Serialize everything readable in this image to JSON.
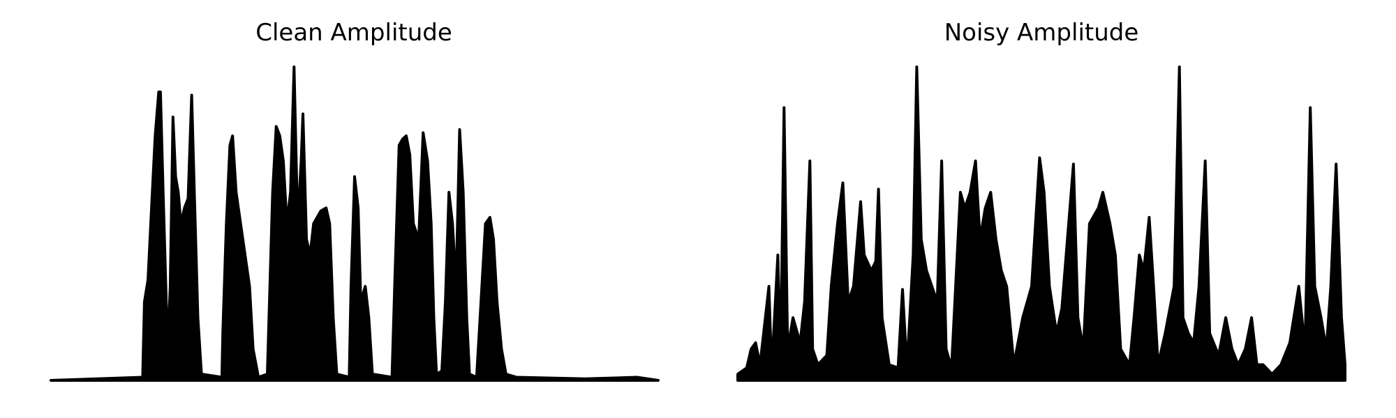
{
  "chart_data": [
    {
      "type": "line",
      "title": "Clean Amplitude",
      "color": "#000000",
      "xlim": [
        0,
        682
      ],
      "ylim": [
        0,
        1
      ],
      "x": [
        0,
        103,
        105,
        109,
        113,
        117,
        121,
        123,
        126,
        129,
        131,
        134,
        137,
        140,
        143,
        146,
        150,
        154,
        158,
        161,
        165,
        169,
        192,
        193,
        197,
        201,
        204,
        208,
        213,
        218,
        223,
        227,
        233,
        243,
        249,
        253,
        257,
        261,
        265,
        269,
        273,
        277,
        281,
        283,
        287,
        291,
        295,
        299,
        303,
        309,
        313,
        317,
        321,
        335,
        337,
        341,
        345,
        348,
        353,
        357,
        361,
        383,
        386,
        391,
        395,
        399,
        403,
        407,
        413,
        418,
        423,
        427,
        430,
        433,
        439,
        443,
        447,
        451,
        455,
        459,
        463,
        467,
        470,
        478,
        483,
        488,
        493,
        497,
        501,
        506,
        511,
        523,
        600,
        658,
        682
      ],
      "values": [
        0,
        0.01,
        0.25,
        0.32,
        0.55,
        0.78,
        0.92,
        0.92,
        0.6,
        0.3,
        0.1,
        0.3,
        0.84,
        0.65,
        0.6,
        0.5,
        0.55,
        0.58,
        0.91,
        0.6,
        0.2,
        0.02,
        0.01,
        0.15,
        0.5,
        0.75,
        0.78,
        0.6,
        0.5,
        0.4,
        0.3,
        0.1,
        0.01,
        0.02,
        0.6,
        0.81,
        0.78,
        0.7,
        0.5,
        0.6,
        1.0,
        0.5,
        0.7,
        0.85,
        0.45,
        0.4,
        0.5,
        0.52,
        0.54,
        0.55,
        0.5,
        0.2,
        0.02,
        0.01,
        0.3,
        0.65,
        0.55,
        0.25,
        0.3,
        0.2,
        0.02,
        0.01,
        0.3,
        0.75,
        0.77,
        0.78,
        0.72,
        0.5,
        0.45,
        0.79,
        0.7,
        0.5,
        0.2,
        0.02,
        0.03,
        0.25,
        0.6,
        0.5,
        0.3,
        0.8,
        0.6,
        0.2,
        0.02,
        0.01,
        0.25,
        0.5,
        0.52,
        0.45,
        0.25,
        0.1,
        0.02,
        0.01,
        0.005,
        0.01,
        0
      ]
    },
    {
      "type": "line",
      "title": "Noisy Amplitude",
      "color": "#000000",
      "xlim": [
        0,
        682
      ],
      "ylim": [
        0,
        1
      ],
      "x": [
        0,
        10,
        15,
        20,
        25,
        35,
        38,
        45,
        48,
        52,
        56,
        62,
        70,
        75,
        81,
        84,
        90,
        100,
        105,
        112,
        118,
        124,
        130,
        138,
        142,
        150,
        155,
        158,
        162,
        170,
        180,
        185,
        190,
        197,
        201,
        206,
        212,
        218,
        224,
        229,
        234,
        240,
        250,
        255,
        261,
        267,
        272,
        278,
        284,
        290,
        296,
        302,
        310,
        320,
        330,
        339,
        344,
        350,
        358,
        364,
        377,
        382,
        388,
        395,
        405,
        410,
        418,
        424,
        430,
        440,
        445,
        451,
        456,
        462,
        467,
        472,
        480,
        490,
        496,
        500,
        506,
        512,
        518,
        525,
        530,
        540,
        548,
        555,
        562,
        570,
        577,
        583,
        590,
        600,
        610,
        620,
        630,
        637,
        643,
        648,
        655,
        661,
        666,
        672,
        678,
        682
      ],
      "values": [
        0.02,
        0.04,
        0.1,
        0.12,
        0.05,
        0.3,
        0.03,
        0.4,
        0.05,
        0.87,
        0.1,
        0.2,
        0.12,
        0.25,
        0.7,
        0.1,
        0.05,
        0.08,
        0.3,
        0.5,
        0.63,
        0.25,
        0.3,
        0.57,
        0.4,
        0.35,
        0.38,
        0.61,
        0.2,
        0.05,
        0.04,
        0.29,
        0.04,
        0.4,
        1.0,
        0.45,
        0.35,
        0.3,
        0.25,
        0.7,
        0.1,
        0.04,
        0.6,
        0.55,
        0.6,
        0.7,
        0.45,
        0.55,
        0.6,
        0.45,
        0.35,
        0.3,
        0.05,
        0.2,
        0.3,
        0.71,
        0.6,
        0.3,
        0.15,
        0.23,
        0.69,
        0.2,
        0.1,
        0.5,
        0.55,
        0.6,
        0.5,
        0.4,
        0.1,
        0.05,
        0.2,
        0.4,
        0.35,
        0.52,
        0.3,
        0.05,
        0.15,
        0.3,
        1.0,
        0.2,
        0.15,
        0.12,
        0.3,
        0.7,
        0.15,
        0.08,
        0.2,
        0.1,
        0.05,
        0.1,
        0.2,
        0.05,
        0.05,
        0.02,
        0.05,
        0.12,
        0.3,
        0.1,
        0.87,
        0.3,
        0.2,
        0.1,
        0.3,
        0.69,
        0.2,
        0.05
      ]
    }
  ]
}
